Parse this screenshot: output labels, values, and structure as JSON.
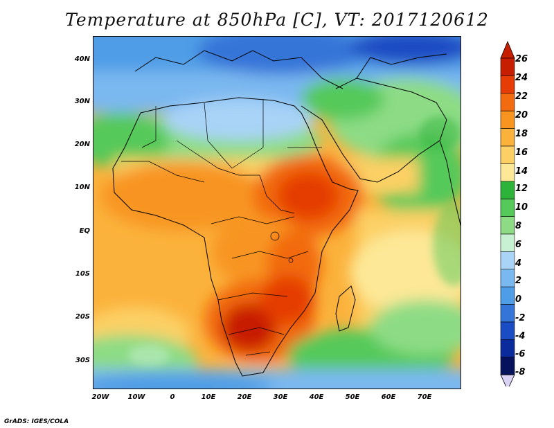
{
  "title": "Temperature at 850hPa [C], VT: 2017120612",
  "credit": "GrADS: IGES/COLA",
  "map": {
    "lat_ticks": [
      "40N",
      "30N",
      "20N",
      "10N",
      "EQ",
      "10S",
      "20S",
      "30S"
    ],
    "lon_ticks": [
      "20W",
      "10W",
      "0",
      "10E",
      "20E",
      "30E",
      "40E",
      "50E",
      "60E",
      "70E"
    ],
    "lon_range": [
      -22,
      80
    ],
    "lat_range": [
      -36,
      45
    ]
  },
  "colorbar": {
    "labels": [
      "26",
      "24",
      "22",
      "20",
      "18",
      "16",
      "14",
      "12",
      "10",
      "8",
      "6",
      "4",
      "2",
      "0",
      "-2",
      "-4",
      "-6",
      "-8"
    ],
    "colors": [
      "#c81e00",
      "#e53d05",
      "#f26b10",
      "#f89520",
      "#fbb23c",
      "#fcd065",
      "#fde897",
      "#2eb33a",
      "#55c95a",
      "#8ddc85",
      "#c8f0d2",
      "#a9d3f7",
      "#7ab8f0",
      "#4f9de6",
      "#3475d8",
      "#1a4cc4",
      "#0b2a9c",
      "#06125c"
    ]
  }
}
